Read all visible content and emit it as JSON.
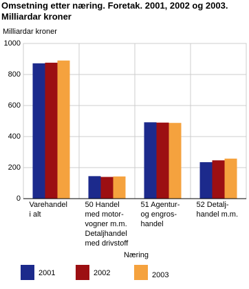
{
  "chart_data": {
    "type": "bar",
    "title": [
      "Omsetning etter næring. Foretak. 2001, 2002 og 2003.",
      "Milliardar kroner"
    ],
    "y_label": "Milliardar kroner",
    "x_label": "Næring",
    "categories": [
      [
        "Varehandel",
        "i alt"
      ],
      [
        "50 Handel",
        "med motor-",
        "vogner m.m.",
        "Detaljhandel",
        "med drivstoff"
      ],
      [
        "51 Agentur-",
        "og engros-",
        "handel"
      ],
      [
        "52 Detalj-",
        "handel m.m."
      ]
    ],
    "series": [
      {
        "name": "2001",
        "color": "#1c2a8c",
        "values": [
          872,
          145,
          492,
          235
        ]
      },
      {
        "name": "2002",
        "color": "#9c0f12",
        "values": [
          876,
          140,
          490,
          247
        ]
      },
      {
        "name": "2003",
        "color": "#f5a23e",
        "values": [
          890,
          143,
          488,
          258
        ]
      }
    ],
    "ylim": [
      0,
      1000
    ],
    "yticks": [
      0,
      200,
      400,
      600,
      800,
      1000
    ],
    "grid": true
  }
}
